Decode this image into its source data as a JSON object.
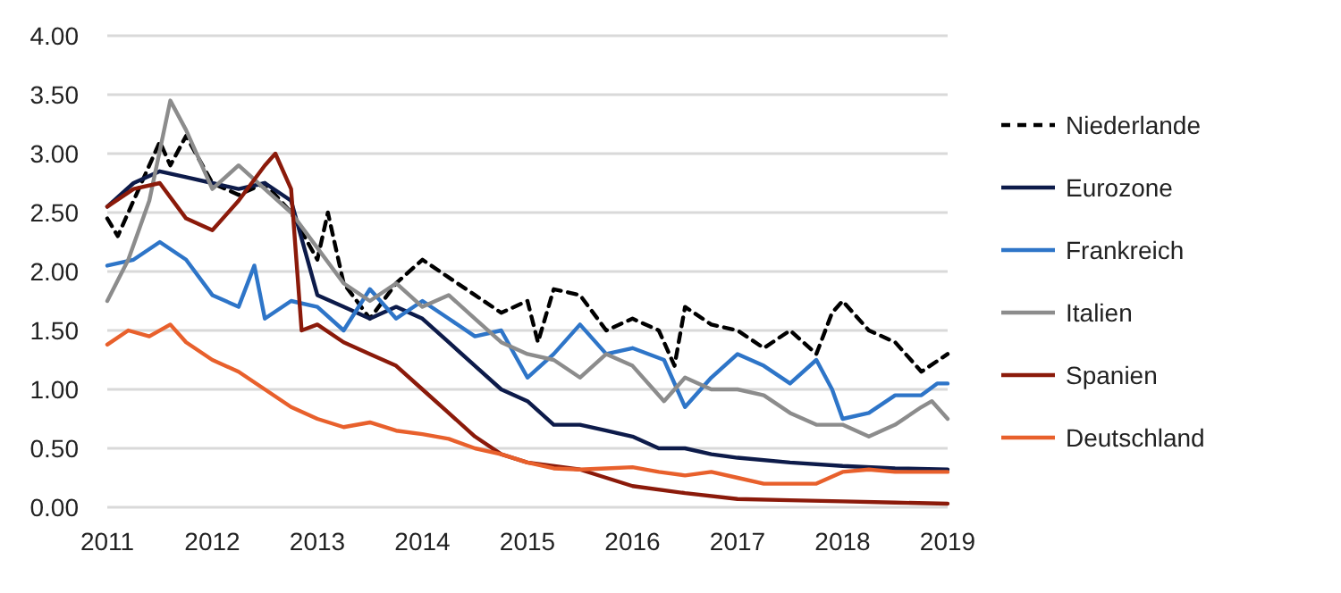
{
  "chart_data": {
    "type": "line",
    "xlim": [
      2011,
      2019
    ],
    "xticks": [
      2011,
      2012,
      2013,
      2014,
      2015,
      2016,
      2017,
      2018,
      2019
    ],
    "ylim": [
      0,
      4
    ],
    "yticks": [
      {
        "value": 0,
        "label": "0.00"
      },
      {
        "value": 0.5,
        "label": "0.50"
      },
      {
        "value": 1,
        "label": "1.00"
      },
      {
        "value": 1.5,
        "label": "1.50"
      },
      {
        "value": 2,
        "label": "2.00"
      },
      {
        "value": 2.5,
        "label": "2.50"
      },
      {
        "value": 3,
        "label": "3.00"
      },
      {
        "value": 3.5,
        "label": "3.50"
      },
      {
        "value": 4,
        "label": "4.00"
      }
    ],
    "grid": "y",
    "legend": "right",
    "series": [
      {
        "name": "Niederlande",
        "color": "#000000",
        "line_style": "dashed",
        "x": [
          2011,
          2011.1,
          2011.25,
          2011.5,
          2011.6,
          2011.75,
          2012,
          2012.25,
          2012.5,
          2012.75,
          2013,
          2013.1,
          2013.25,
          2013.5,
          2013.75,
          2014,
          2014.25,
          2014.5,
          2014.75,
          2015,
          2015.1,
          2015.25,
          2015.5,
          2015.75,
          2016,
          2016.25,
          2016.4,
          2016.5,
          2016.75,
          2017,
          2017.25,
          2017.5,
          2017.75,
          2017.9,
          2018,
          2018.25,
          2018.5,
          2018.75,
          2019
        ],
        "values": [
          2.45,
          2.3,
          2.6,
          3.1,
          2.9,
          3.15,
          2.75,
          2.65,
          2.75,
          2.5,
          2.1,
          2.5,
          1.9,
          1.6,
          1.9,
          2.1,
          1.95,
          1.8,
          1.65,
          1.75,
          1.4,
          1.85,
          1.8,
          1.5,
          1.6,
          1.5,
          1.2,
          1.7,
          1.55,
          1.5,
          1.35,
          1.5,
          1.3,
          1.65,
          1.75,
          1.5,
          1.4,
          1.15,
          1.3
        ]
      },
      {
        "name": "Eurozone",
        "color": "#0d1b4a",
        "line_style": "solid",
        "x": [
          2011,
          2011.25,
          2011.5,
          2011.75,
          2012,
          2012.25,
          2012.5,
          2012.75,
          2013,
          2013.25,
          2013.5,
          2013.75,
          2014,
          2014.25,
          2014.5,
          2014.75,
          2015,
          2015.25,
          2015.5,
          2015.75,
          2016,
          2016.25,
          2016.5,
          2016.75,
          2017,
          2017.5,
          2018,
          2018.5,
          2019
        ],
        "values": [
          2.55,
          2.75,
          2.85,
          2.8,
          2.75,
          2.7,
          2.75,
          2.6,
          1.8,
          1.7,
          1.6,
          1.7,
          1.6,
          1.4,
          1.2,
          1.0,
          0.9,
          0.7,
          0.7,
          0.65,
          0.6,
          0.5,
          0.5,
          0.45,
          0.42,
          0.38,
          0.35,
          0.33,
          0.32
        ]
      },
      {
        "name": "Frankreich",
        "color": "#2e75c8",
        "line_style": "solid",
        "x": [
          2011,
          2011.25,
          2011.5,
          2011.75,
          2012,
          2012.25,
          2012.4,
          2012.5,
          2012.75,
          2013,
          2013.25,
          2013.5,
          2013.75,
          2014,
          2014.25,
          2014.5,
          2014.75,
          2015,
          2015.25,
          2015.5,
          2015.75,
          2016,
          2016.3,
          2016.5,
          2016.75,
          2017,
          2017.25,
          2017.5,
          2017.75,
          2017.9,
          2018,
          2018.25,
          2018.5,
          2018.75,
          2018.9,
          2019
        ],
        "values": [
          2.05,
          2.1,
          2.25,
          2.1,
          1.8,
          1.7,
          2.05,
          1.6,
          1.75,
          1.7,
          1.5,
          1.85,
          1.6,
          1.75,
          1.6,
          1.45,
          1.5,
          1.1,
          1.3,
          1.55,
          1.3,
          1.35,
          1.25,
          0.85,
          1.1,
          1.3,
          1.2,
          1.05,
          1.25,
          1.0,
          0.75,
          0.8,
          0.95,
          0.95,
          1.05,
          1.05
        ]
      },
      {
        "name": "Italien",
        "color": "#8c8c8c",
        "line_style": "solid",
        "x": [
          2011,
          2011.2,
          2011.4,
          2011.6,
          2011.75,
          2012,
          2012.25,
          2012.5,
          2012.75,
          2013,
          2013.25,
          2013.5,
          2013.75,
          2014,
          2014.25,
          2014.5,
          2014.75,
          2015,
          2015.25,
          2015.5,
          2015.75,
          2016,
          2016.3,
          2016.5,
          2016.75,
          2017,
          2017.25,
          2017.5,
          2017.75,
          2018,
          2018.25,
          2018.5,
          2018.75,
          2018.85,
          2019
        ],
        "values": [
          1.75,
          2.1,
          2.6,
          3.45,
          3.2,
          2.7,
          2.9,
          2.7,
          2.5,
          2.2,
          1.9,
          1.75,
          1.9,
          1.7,
          1.8,
          1.6,
          1.4,
          1.3,
          1.25,
          1.1,
          1.3,
          1.2,
          0.9,
          1.1,
          1.0,
          1.0,
          0.95,
          0.8,
          0.7,
          0.7,
          0.6,
          0.7,
          0.85,
          0.9,
          0.75
        ]
      },
      {
        "name": "Spanien",
        "color": "#8b1a0a",
        "line_style": "solid",
        "x": [
          2011,
          2011.25,
          2011.5,
          2011.75,
          2012,
          2012.25,
          2012.5,
          2012.6,
          2012.75,
          2012.85,
          2013,
          2013.25,
          2013.5,
          2013.75,
          2014,
          2014.25,
          2014.5,
          2014.75,
          2015,
          2015.5,
          2015.75,
          2016,
          2016.5,
          2017,
          2017.5,
          2018,
          2018.5,
          2019
        ],
        "values": [
          2.55,
          2.7,
          2.75,
          2.45,
          2.35,
          2.6,
          2.9,
          3.0,
          2.7,
          1.5,
          1.55,
          1.4,
          1.3,
          1.2,
          1.0,
          0.8,
          0.6,
          0.45,
          0.38,
          0.32,
          0.25,
          0.18,
          0.12,
          0.07,
          0.06,
          0.05,
          0.04,
          0.03
        ]
      },
      {
        "name": "Deutschland",
        "color": "#e8602c",
        "line_style": "solid",
        "x": [
          2011,
          2011.2,
          2011.4,
          2011.6,
          2011.75,
          2012,
          2012.25,
          2012.5,
          2012.75,
          2013,
          2013.25,
          2013.5,
          2013.75,
          2014,
          2014.25,
          2014.5,
          2014.75,
          2015,
          2015.25,
          2015.5,
          2015.75,
          2016,
          2016.25,
          2016.5,
          2016.75,
          2017,
          2017.25,
          2017.5,
          2017.75,
          2018,
          2018.25,
          2018.5,
          2018.75,
          2019
        ],
        "values": [
          1.38,
          1.5,
          1.45,
          1.55,
          1.4,
          1.25,
          1.15,
          1.0,
          0.85,
          0.75,
          0.68,
          0.72,
          0.65,
          0.62,
          0.58,
          0.5,
          0.45,
          0.38,
          0.33,
          0.32,
          0.33,
          0.34,
          0.3,
          0.27,
          0.3,
          0.25,
          0.2,
          0.2,
          0.2,
          0.3,
          0.32,
          0.3,
          0.3,
          0.3
        ]
      }
    ]
  }
}
